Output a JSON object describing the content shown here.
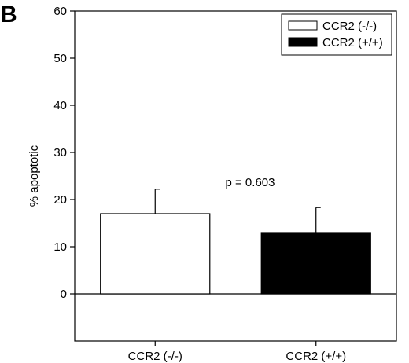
{
  "panel_label": "B",
  "chart_data": {
    "type": "bar",
    "categories": [
      "CCR2 (-/-)",
      "CCR2 (+/+)"
    ],
    "series": [
      {
        "name": "CCR2 (-/-)",
        "values": [
          17,
          null
        ],
        "error": [
          5.2,
          null
        ],
        "color": "#ffffff"
      },
      {
        "name": "CCR2 (+/+)",
        "values": [
          null,
          13
        ],
        "error": [
          null,
          5.3
        ],
        "color": "#000000"
      }
    ],
    "title": "",
    "xlabel": "",
    "ylabel": "% apoptotic",
    "ylim": [
      -10,
      60
    ],
    "yticks": [
      0,
      10,
      20,
      30,
      40,
      50,
      60
    ],
    "yticks_labels": [
      "0",
      "10",
      "20",
      "30",
      "40",
      "50",
      "60"
    ],
    "grid": false,
    "legend_position": "top-right",
    "annotation": "p = 0.603"
  }
}
